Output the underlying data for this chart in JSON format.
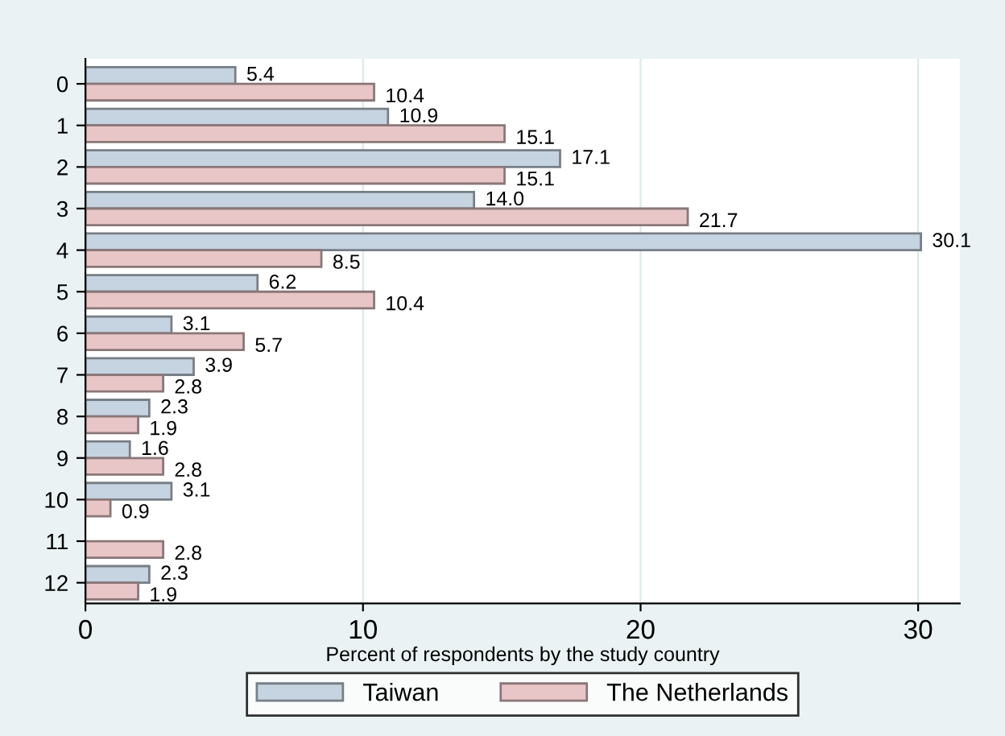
{
  "chart_data": {
    "type": "bar",
    "orientation": "horizontal",
    "xlabel": "Percent of respondents by the study country",
    "categories": [
      "0",
      "1",
      "2",
      "3",
      "4",
      "5",
      "6",
      "7",
      "8",
      "9",
      "10",
      "11",
      "12"
    ],
    "series": [
      {
        "name": "Taiwan",
        "color": "#c6d3e0",
        "values": [
          5.4,
          10.9,
          17.1,
          14.0,
          30.1,
          6.2,
          3.1,
          3.9,
          2.3,
          1.6,
          3.1,
          null,
          2.3
        ],
        "value_labels": [
          "5.4",
          "10.9",
          "17.1",
          "14.0",
          "30.1",
          "6.2",
          "3.1",
          "3.9",
          "2.3",
          "1.6",
          "3.1",
          null,
          "2.3"
        ]
      },
      {
        "name": "The Netherlands",
        "color": "#e8c6c8",
        "values": [
          10.4,
          15.1,
          15.1,
          21.7,
          8.5,
          10.4,
          5.7,
          2.8,
          1.9,
          2.8,
          0.9,
          2.8,
          1.9
        ],
        "value_labels": [
          "10.4",
          "15.1",
          "15.1",
          "21.7",
          "8.5",
          "10.4",
          "5.7",
          "2.8",
          "1.9",
          "2.8",
          "0.9",
          "2.8",
          "1.9"
        ]
      }
    ],
    "xlim": [
      0,
      31.5
    ],
    "xticks": [
      0,
      10,
      20,
      30
    ],
    "grid": "x",
    "legend": "bottom"
  }
}
